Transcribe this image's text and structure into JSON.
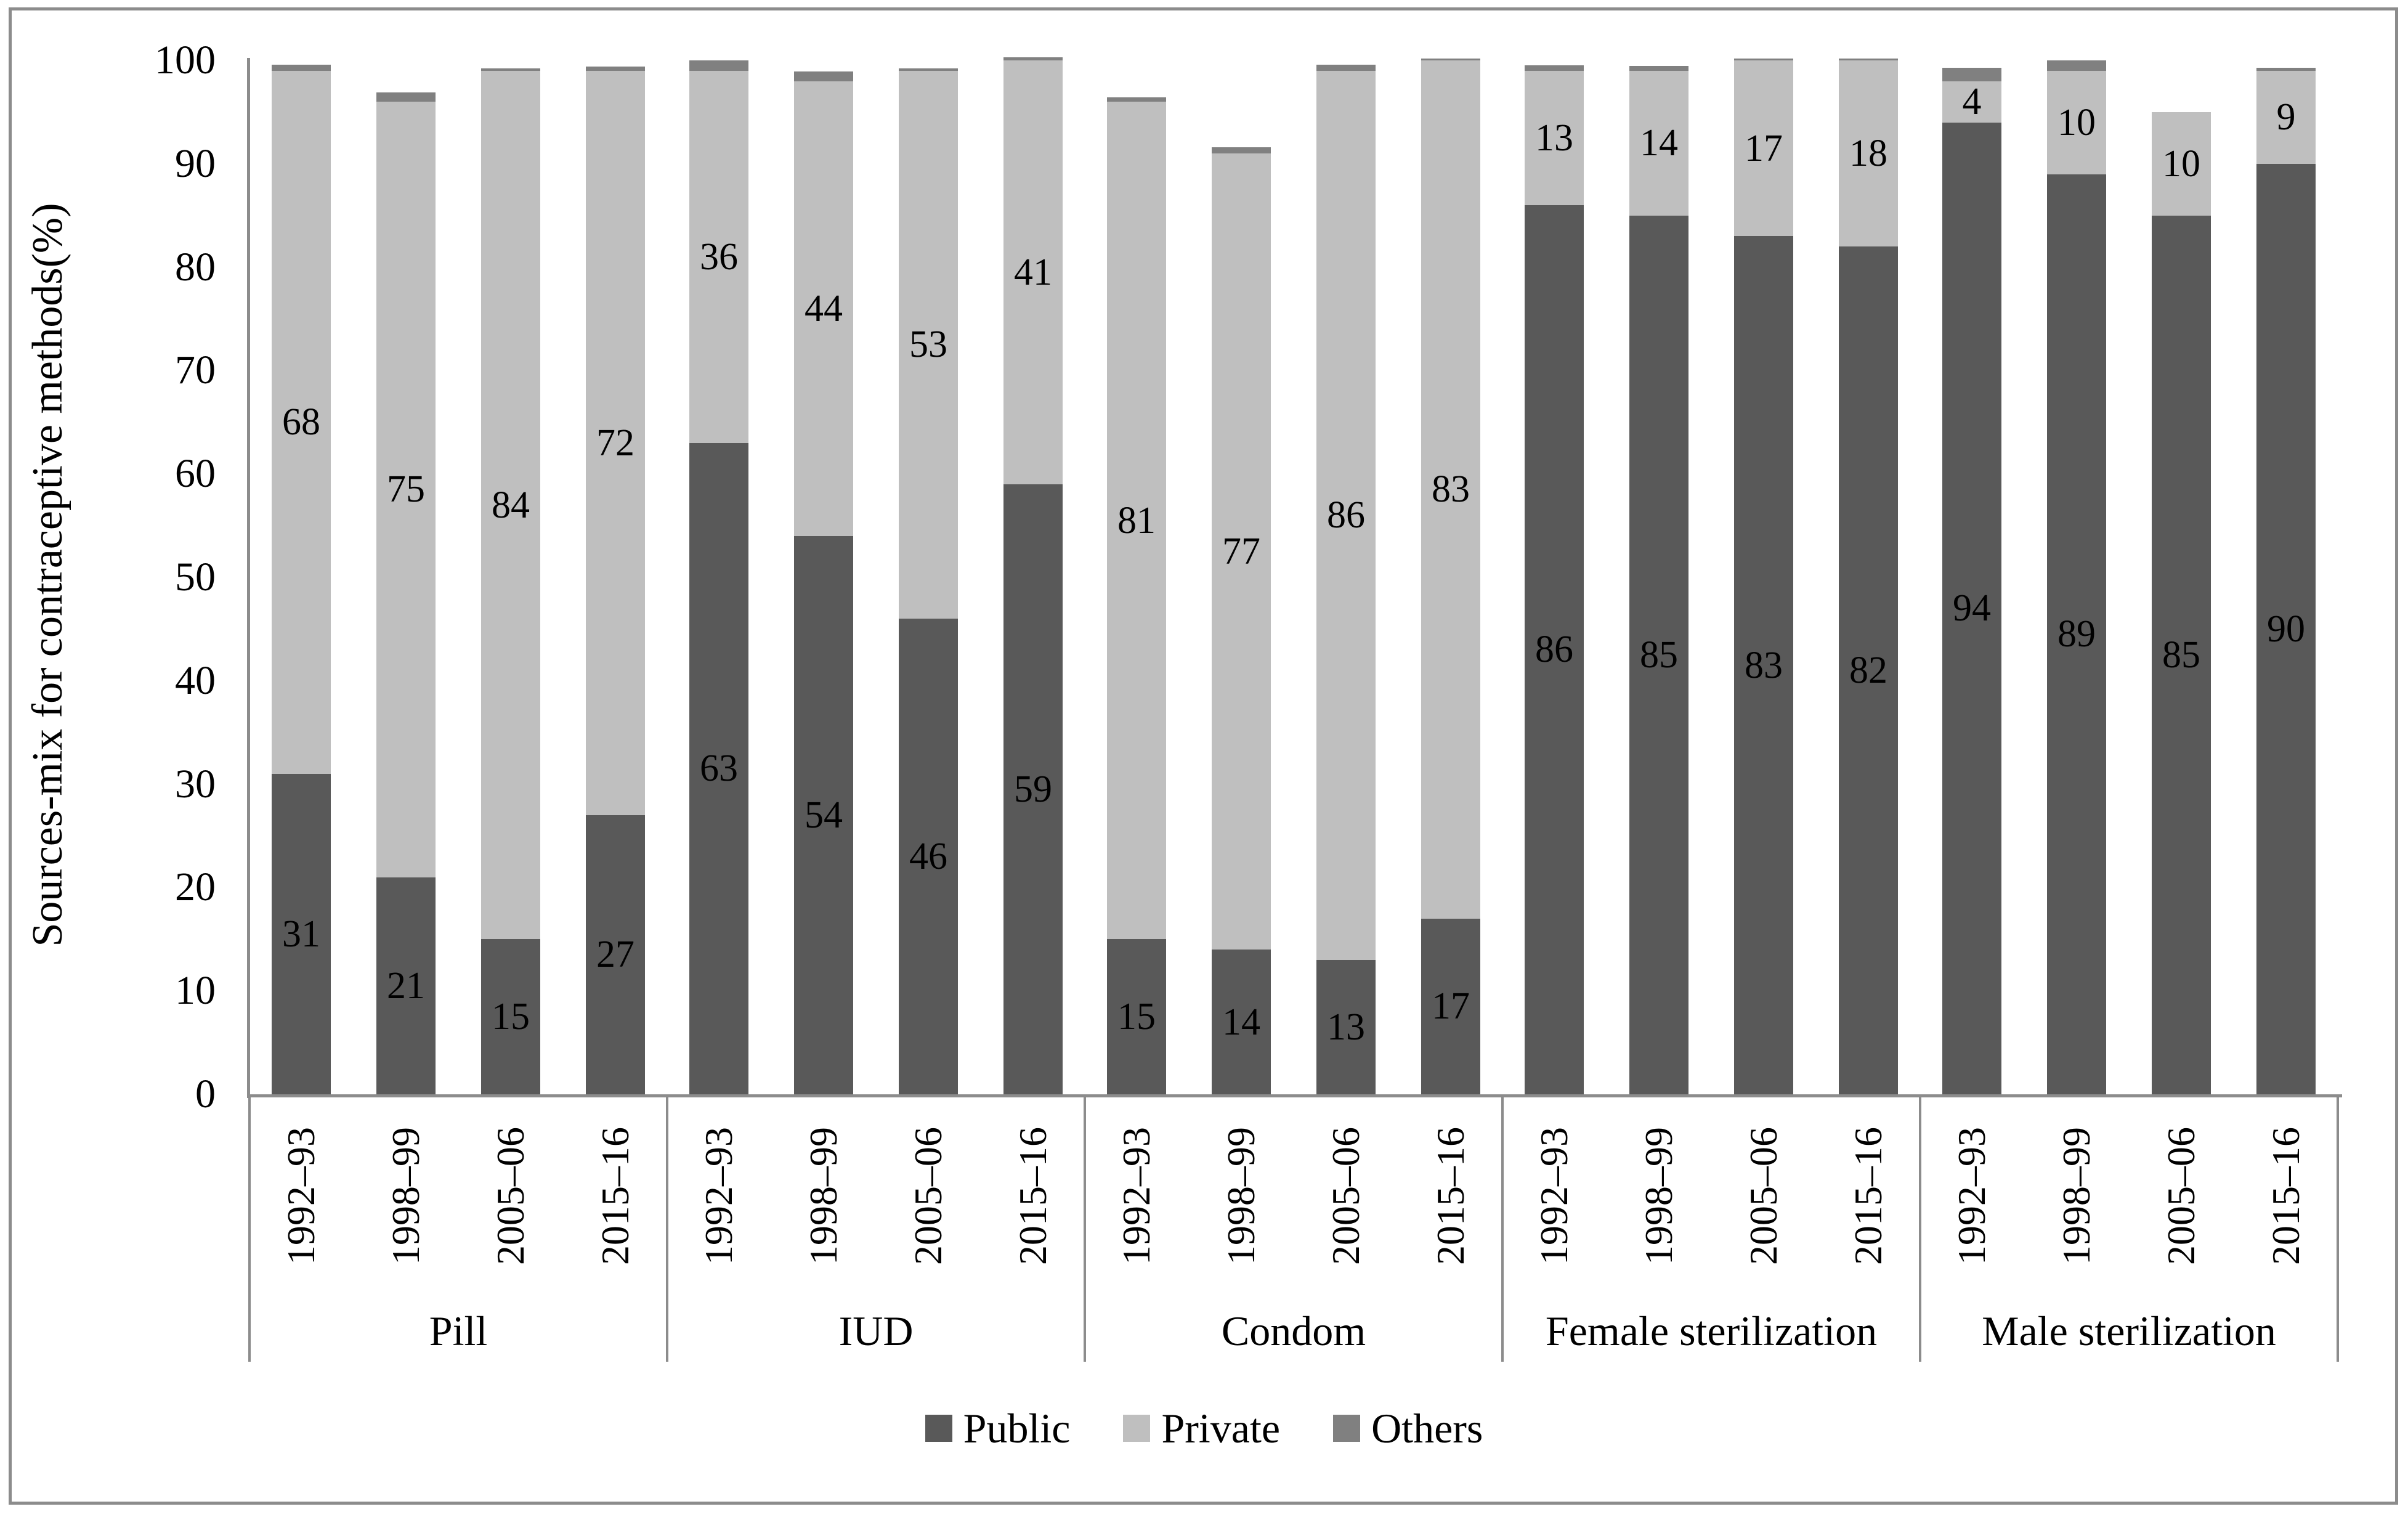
{
  "figure": {
    "type": "static-chart-image",
    "border_color": "#8c8c8c",
    "background": "#ffffff"
  },
  "chart_data": {
    "type": "bar",
    "stacked": true,
    "title": "",
    "ylabel": "Sources-mix for contraceptive methods(%)",
    "xlabel": "",
    "ylim": [
      0,
      100
    ],
    "yticks": [
      0,
      10,
      20,
      30,
      40,
      50,
      60,
      70,
      80,
      90,
      100
    ],
    "grid": false,
    "legend_position": "bottom",
    "axis_color": "#8c8c8c",
    "label_color": "#000000",
    "groups": [
      "Pill",
      "IUD",
      "Condom",
      "Female sterilization",
      "Male sterilization"
    ],
    "periods": [
      "1992–93",
      "1998–99",
      "2005–06",
      "2015–16"
    ],
    "series": [
      {
        "name": "Public",
        "color": "#595959",
        "labeled": true,
        "values": [
          [
            31,
            21,
            15,
            27
          ],
          [
            63,
            54,
            46,
            59
          ],
          [
            15,
            14,
            13,
            17
          ],
          [
            86,
            85,
            83,
            82
          ],
          [
            94,
            89,
            85,
            90
          ]
        ]
      },
      {
        "name": "Private",
        "color": "#bfbfbf",
        "labeled": true,
        "values": [
          [
            68,
            75,
            84,
            72
          ],
          [
            36,
            44,
            53,
            41
          ],
          [
            81,
            77,
            86,
            83
          ],
          [
            13,
            14,
            17,
            18
          ],
          [
            4,
            10,
            10,
            9
          ]
        ]
      },
      {
        "name": "Others",
        "color": "#808080",
        "labeled": false,
        "values": [
          [
            0.6,
            0.9,
            0.25,
            0.4
          ],
          [
            1.0,
            0.9,
            0.25,
            0.3
          ],
          [
            0.45,
            0.6,
            0.6,
            0.2
          ],
          [
            0.5,
            0.45,
            0.2,
            0.2
          ],
          [
            1.3,
            1.0,
            0,
            0.3
          ]
        ]
      }
    ]
  }
}
